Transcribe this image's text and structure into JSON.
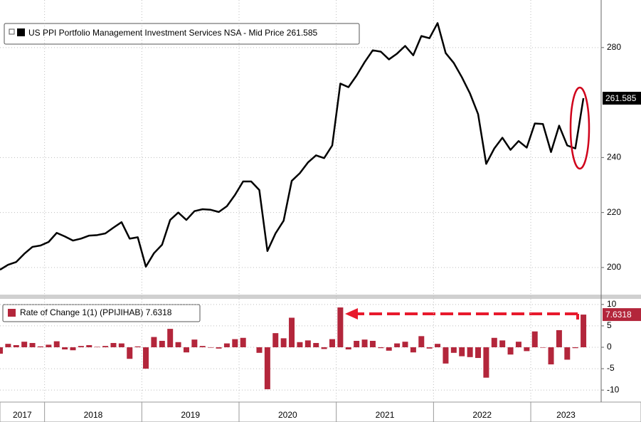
{
  "chart_data": [
    {
      "type": "line",
      "series": [
        {
          "name": "US PPI Portfolio Management Investment Services NSA - Mid Price 261.585",
          "color": "#000000",
          "values": [
            199.2,
            201,
            202,
            205,
            207.5,
            208,
            209.3,
            212.6,
            211.3,
            209.8,
            210.5,
            211.6,
            211.8,
            212.4,
            214.5,
            216.5,
            210.5,
            211,
            200.3,
            205.2,
            208.3,
            217.3,
            220,
            217.3,
            220.5,
            221.2,
            221,
            220.2,
            222.3,
            226.4,
            231.3,
            231.3,
            228.2,
            206,
            212.4,
            217,
            231.5,
            234.3,
            238.2,
            240.8,
            239.8,
            244.4,
            266.9,
            265.6,
            269.8,
            274.7,
            279,
            278.5,
            275.7,
            277.8,
            280.6,
            277.2,
            284.2,
            283.4,
            288.9,
            278,
            274.4,
            269.2,
            263.3,
            255.8,
            237.7,
            243.3,
            247.2,
            242.8,
            246,
            243.6,
            252.4,
            252.2,
            242,
            251.6,
            244.4,
            243.3,
            261.585
          ]
        }
      ],
      "ylim": [
        190.4,
        297.3
      ],
      "yticks": [
        200,
        220,
        240,
        280
      ],
      "grid": true
    },
    {
      "type": "bar",
      "series": [
        {
          "name": "Rate of Change 1(1) (PPIJIHAB) 7.6318",
          "color": "#b3263b",
          "values": [
            -1.5,
            0.8,
            0.5,
            1.3,
            1,
            0.2,
            0.6,
            1.4,
            -0.5,
            -0.7,
            0.3,
            0.5,
            0.1,
            0.3,
            1,
            0.9,
            -2.7,
            0.2,
            -5,
            2.4,
            1.5,
            4.3,
            1.2,
            -1.2,
            1.8,
            0.3,
            -0.1,
            -0.3,
            0.9,
            1.9,
            2.2,
            0,
            -1.3,
            -9.8,
            3.3,
            2.1,
            6.9,
            1.2,
            1.6,
            1,
            -0.4,
            1.9,
            9.3,
            -0.5,
            1.5,
            1.8,
            1.5,
            -0.2,
            -0.8,
            0.9,
            1.3,
            -1.2,
            2.6,
            -0.3,
            0.8,
            -3.8,
            -1.3,
            -2.1,
            -2.3,
            -2.5,
            -7.1,
            2.2,
            1.6,
            -1.7,
            1.3,
            -0.9,
            3.7,
            -0.1,
            -4,
            4,
            -2.9,
            -0.2,
            7.6318
          ]
        }
      ],
      "ylim": [
        -12.8,
        11.3
      ],
      "yticks": [
        -10,
        -5,
        0,
        5,
        10
      ],
      "grid": true,
      "x_labels": [
        "2017",
        "2018",
        "2019",
        "2020",
        "2021",
        "2022",
        "2023"
      ]
    }
  ]
}
